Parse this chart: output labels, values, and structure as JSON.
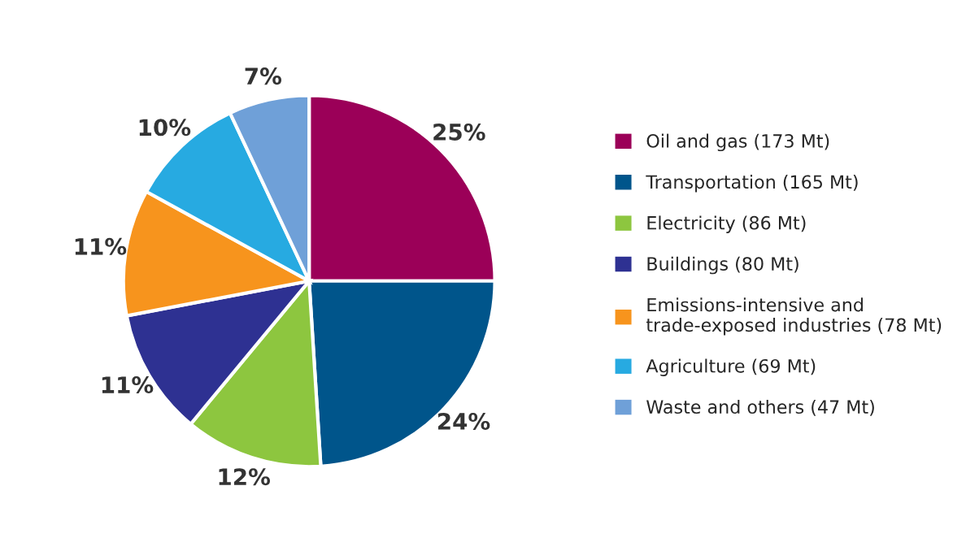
{
  "chart_data": {
    "type": "pie",
    "categories": [
      "Oil and gas (173 Mt)",
      "Transportation (165 Mt)",
      "Electricity (86 Mt)",
      "Buildings (80 Mt)",
      "Emissions-intensive and\ntrade-exposed industries (78 Mt)",
      "Agriculture (69 Mt)",
      "Waste and others (47 Mt)"
    ],
    "values": [
      25,
      24,
      12,
      11,
      11,
      10,
      7
    ],
    "value_labels": [
      "25%",
      "24%",
      "12%",
      "11%",
      "11%",
      "10%",
      "7%"
    ],
    "colors": [
      "#9b0058",
      "#00558b",
      "#8dc63f",
      "#2e3192",
      "#f7941d",
      "#27aae1",
      "#6fa0d8"
    ],
    "legend": "right"
  }
}
